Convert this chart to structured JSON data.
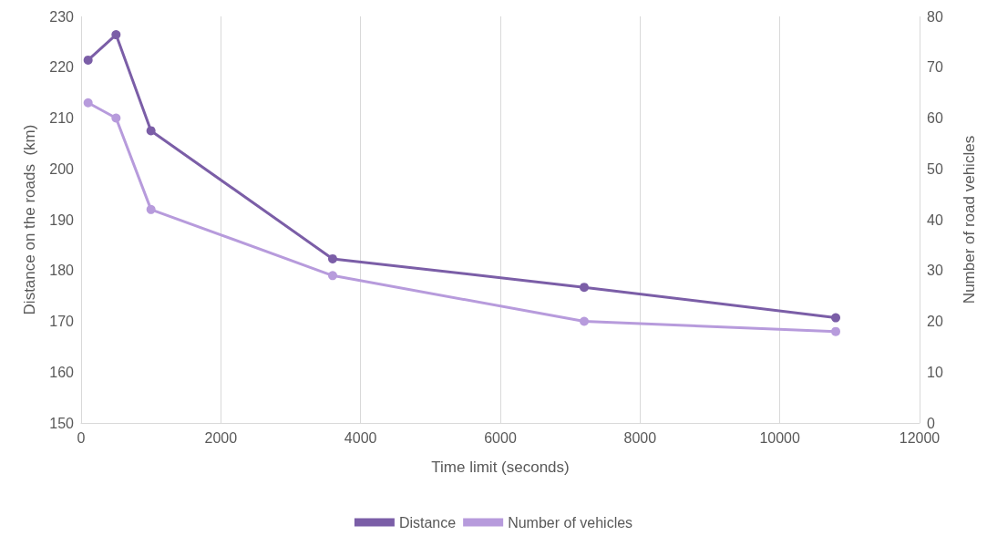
{
  "chart_data": {
    "type": "line",
    "xlabel": "Time limit (seconds)",
    "ylabel": "Distance on the roads  (km)",
    "y2label": "Number of road vehicles",
    "x": [
      100,
      500,
      1000,
      3600,
      7200,
      10800
    ],
    "series": [
      {
        "name": "Distance",
        "color": "#7b5ea7",
        "values": [
          221.4,
          226.4,
          207.5,
          182.3,
          176.7,
          170.7
        ]
      },
      {
        "name": "Number of vehicles",
        "color": "#b79bdc",
        "axis": "y2",
        "values": [
          63,
          60,
          42,
          29,
          20,
          18
        ]
      }
    ],
    "xlim": [
      0,
      12000
    ],
    "xticks": [
      0,
      2000,
      4000,
      6000,
      8000,
      10000,
      12000
    ],
    "ylim": [
      150,
      230
    ],
    "yticks": [
      150,
      160,
      170,
      180,
      190,
      200,
      210,
      220,
      230
    ],
    "y2lim": [
      0,
      80
    ],
    "y2ticks": [
      0,
      10,
      20,
      30,
      40,
      50,
      60,
      70,
      80
    ],
    "grid": "x",
    "legend": "bottom",
    "marker": "circle",
    "line_style": "solid"
  }
}
